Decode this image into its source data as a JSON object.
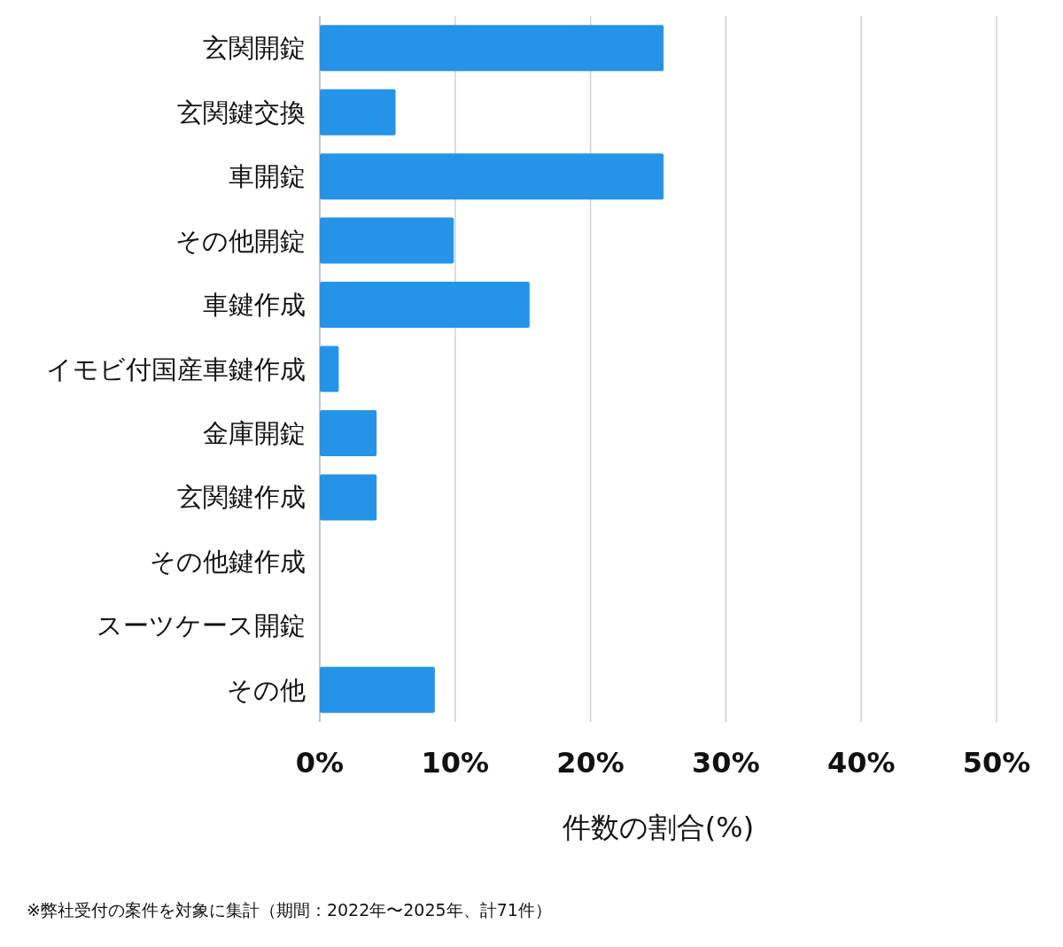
{
  "chart_data": {
    "type": "bar",
    "orientation": "horizontal",
    "categories": [
      "玄関開錠",
      "玄関鍵交換",
      "車開錠",
      "その他開錠",
      "車鍵作成",
      "イモビ付国産車鍵作成",
      "金庫開錠",
      "玄関鍵作成",
      "その他鍵作成",
      "スーツケース開錠",
      "その他"
    ],
    "values": [
      25.4,
      5.6,
      25.4,
      9.9,
      15.5,
      1.4,
      4.2,
      4.2,
      0,
      0,
      8.5
    ],
    "color": "#2594e8",
    "xlim": [
      0,
      50
    ],
    "xticks": [
      {
        "value": 0,
        "label": "0%"
      },
      {
        "value": 10,
        "label": "10%"
      },
      {
        "value": 20,
        "label": "20%"
      },
      {
        "value": 30,
        "label": "30%"
      },
      {
        "value": 40,
        "label": "40%"
      },
      {
        "value": 50,
        "label": "50%"
      }
    ],
    "grid": "x",
    "xlabel": "件数の割合(%)",
    "annotations": [
      "※弊社受付の案件を対象に集計（期間：2022年〜2025年、計71件）"
    ]
  }
}
